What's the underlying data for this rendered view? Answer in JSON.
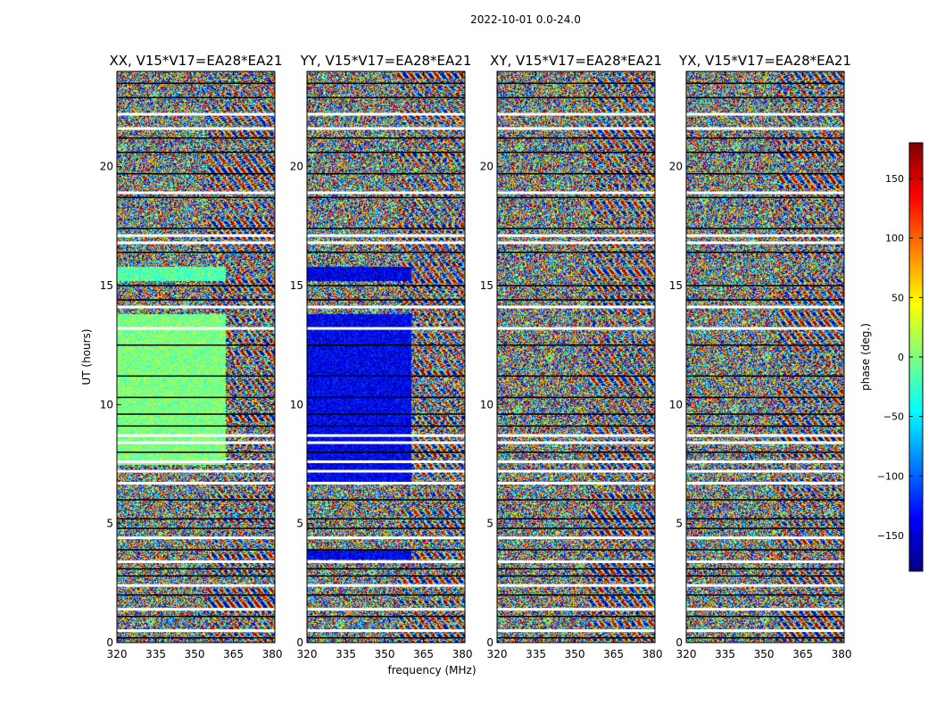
{
  "figure": {
    "suptitle": "2022-10-01 0.0-24.0",
    "xlabel": "frequency (MHz)",
    "ylabel": "UT (hours)"
  },
  "colorbar": {
    "label": "phase (deg.)",
    "range": [
      -180,
      180
    ],
    "ticks": [
      -150,
      -100,
      -50,
      0,
      50,
      100,
      150
    ],
    "tick_labels": [
      "−150",
      "−100",
      "−50",
      "0",
      "50",
      "100",
      "150"
    ],
    "colormap": [
      "#00007f",
      "#0000ff",
      "#007fff",
      "#00ffff",
      "#7fff7f",
      "#ffff00",
      "#ff7f00",
      "#ff0000",
      "#7f0000"
    ]
  },
  "chart_data": [
    {
      "type": "heatmap",
      "name": "XX",
      "title": "XX, V15*V17=EA28*EA21",
      "xlim": [
        320,
        381
      ],
      "ylim": [
        0,
        24
      ],
      "xticks": [
        320,
        335,
        350,
        365,
        380
      ],
      "yticks": [
        0,
        5,
        10,
        15,
        20
      ],
      "coherent_regions": [
        {
          "x": [
            320,
            362
          ],
          "y": [
            7.5,
            13.8
          ],
          "phase": 0
        },
        {
          "x": [
            320,
            362
          ],
          "y": [
            15.2,
            15.8
          ],
          "phase": -15
        }
      ]
    },
    {
      "type": "heatmap",
      "name": "YY",
      "title": "YY, V15*V17=EA28*EA21",
      "xlim": [
        320,
        381
      ],
      "ylim": [
        0,
        24
      ],
      "xticks": [
        320,
        335,
        350,
        365,
        380
      ],
      "yticks": [
        0,
        5,
        10,
        15,
        20
      ],
      "coherent_regions": [
        {
          "x": [
            320,
            360
          ],
          "y": [
            6.7,
            13.8
          ],
          "phase": -140
        },
        {
          "x": [
            320,
            360
          ],
          "y": [
            15.2,
            15.8
          ],
          "phase": -145
        },
        {
          "x": [
            320,
            360
          ],
          "y": [
            3.5,
            3.9
          ],
          "phase": -140
        }
      ]
    },
    {
      "type": "heatmap",
      "name": "XY",
      "title": "XY, V15*V17=EA28*EA21",
      "xlim": [
        320,
        381
      ],
      "ylim": [
        0,
        24
      ],
      "xticks": [
        320,
        335,
        350,
        365,
        380
      ],
      "yticks": [
        0,
        5,
        10,
        15,
        20
      ],
      "coherent_regions": []
    },
    {
      "type": "heatmap",
      "name": "YX",
      "title": "YX, V15*V17=EA28*EA21",
      "xlim": [
        320,
        381
      ],
      "ylim": [
        0,
        24
      ],
      "xticks": [
        320,
        335,
        350,
        365,
        380
      ],
      "yticks": [
        0,
        5,
        10,
        15,
        20
      ],
      "coherent_regions": []
    }
  ]
}
